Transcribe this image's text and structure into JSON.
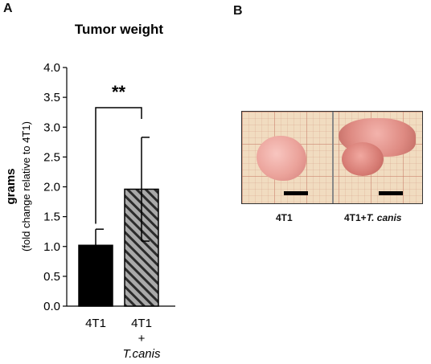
{
  "panel_a": {
    "letter": "A"
  },
  "panel_b": {
    "letter": "B",
    "labels": [
      "4T1",
      "4T1+"
    ],
    "label_2_italic": "T. canis"
  },
  "chart_data": {
    "type": "bar",
    "title": "Tumor weight",
    "ylabel": "grams",
    "ylabel_sub": "(fold change relative to 4T1)",
    "xlabel": "",
    "categories": [
      {
        "lines": [
          "4T1"
        ],
        "italic": ""
      },
      {
        "lines": [
          "4T1",
          "+"
        ],
        "italic": "T.canis"
      }
    ],
    "values": [
      1.02,
      1.96
    ],
    "errors": [
      0.27,
      0.87
    ],
    "ylim": [
      0.0,
      4.0
    ],
    "yticks": [
      "0.0",
      "0.5",
      "1.0",
      "1.5",
      "2.0",
      "2.5",
      "3.0",
      "3.5",
      "4.0"
    ],
    "grid": false,
    "bar_styles": [
      "solid",
      "hatched"
    ],
    "colors": {
      "bar1": "#000000",
      "bar2_fill": "#a9a9a9",
      "hatch": "#2b2b2b"
    },
    "significance": {
      "text": "**",
      "between": [
        0,
        1
      ]
    }
  }
}
